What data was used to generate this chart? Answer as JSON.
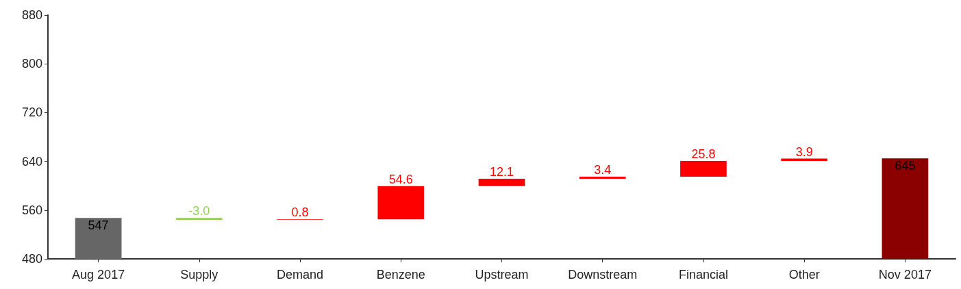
{
  "chart_data": {
    "type": "bar",
    "categories": [
      "Aug 2017",
      "Supply",
      "Demand",
      "Benzene",
      "Upstream",
      "Downstream",
      "Financial",
      "Other",
      "Nov 2017"
    ],
    "values": [
      547,
      -3.0,
      0.8,
      54.6,
      12.1,
      3.4,
      25.8,
      3.9,
      645
    ],
    "base": [
      null,
      547,
      544,
      544.8,
      599.4,
      611.5,
      614.9,
      640.7,
      null
    ],
    "colors": [
      "#666666",
      "#92d050",
      "#ff0000",
      "#ff0000",
      "#ff0000",
      "#ff0000",
      "#ff0000",
      "#ff0000",
      "#8b0000"
    ],
    "value_labels": [
      "547",
      "-3.0",
      "0.8",
      "54.6",
      "12.1",
      "3.4",
      "25.8",
      "3.9",
      "645"
    ],
    "ylim": [
      480,
      880
    ],
    "yticks": [
      480,
      560,
      640,
      720,
      800,
      880
    ],
    "grid": false
  }
}
